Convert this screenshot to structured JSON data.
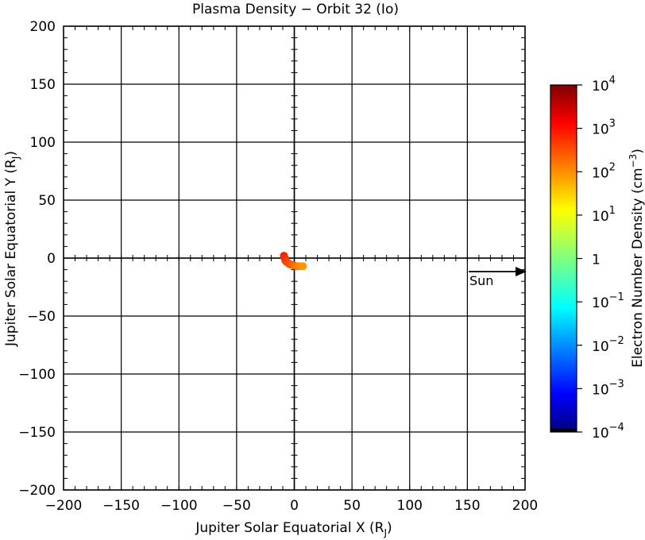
{
  "chart_data": {
    "type": "scatter",
    "title": "Plasma Density − Orbit 32 (Io)",
    "xlabel": "Jupiter Solar Equatorial X (R",
    "xlabel_sub": "J",
    "xlabel_end": ")",
    "ylabel": "Jupiter Solar Equatorial Y (R",
    "ylabel_sub": "J",
    "ylabel_end": ")",
    "xlim": [
      -200,
      200
    ],
    "ylim": [
      -200,
      200
    ],
    "x_ticks": [
      -200,
      -150,
      -100,
      -50,
      0,
      50,
      100,
      150,
      200
    ],
    "x_tick_labels": [
      "−200",
      "−150",
      "−100",
      "−50",
      "0",
      "50",
      "100",
      "150",
      "200"
    ],
    "y_ticks": [
      -200,
      -150,
      -100,
      -50,
      0,
      50,
      100,
      150,
      200
    ],
    "y_tick_labels": [
      "−200",
      "−150",
      "−100",
      "−50",
      "0",
      "50",
      "100",
      "150",
      "200"
    ],
    "grid": true,
    "sun_label": "Sun",
    "series": [
      {
        "points": [
          {
            "x": -9.0,
            "y": 2.0,
            "density": 800
          },
          {
            "x": -8.5,
            "y": 0.5,
            "density": 700
          },
          {
            "x": -8.0,
            "y": -1.0,
            "density": 600
          },
          {
            "x": -7.5,
            "y": -2.5,
            "density": 500
          },
          {
            "x": -6.5,
            "y": -3.5,
            "density": 400
          },
          {
            "x": -5.0,
            "y": -4.5,
            "density": 350
          },
          {
            "x": -3.5,
            "y": -5.5,
            "density": 300
          },
          {
            "x": -2.0,
            "y": -6.0,
            "density": 250
          },
          {
            "x": 0.0,
            "y": -6.5,
            "density": 200
          },
          {
            "x": 2.0,
            "y": -7.0,
            "density": 150
          },
          {
            "x": 4.0,
            "y": -7.0,
            "density": 120
          },
          {
            "x": 6.0,
            "y": -7.0,
            "density": 100
          },
          {
            "x": 7.5,
            "y": -7.0,
            "density": 90
          }
        ]
      }
    ],
    "colorbar": {
      "label": "Electron Number Density (cm",
      "label_sup": "−3",
      "label_end": ")",
      "scale": "log",
      "range": [
        0.0001,
        10000
      ],
      "ticks": [
        {
          "value": 10000,
          "base": "10",
          "exp": "4"
        },
        {
          "value": 1000,
          "base": "10",
          "exp": "3"
        },
        {
          "value": 100,
          "base": "10",
          "exp": "2"
        },
        {
          "value": 10,
          "base": "10",
          "exp": "1"
        },
        {
          "value": 1,
          "base": "1",
          "exp": ""
        },
        {
          "value": 0.1,
          "base": "10",
          "exp": "−1"
        },
        {
          "value": 0.01,
          "base": "10",
          "exp": "−2"
        },
        {
          "value": 0.001,
          "base": "10",
          "exp": "−3"
        },
        {
          "value": 0.0001,
          "base": "10",
          "exp": "−4"
        }
      ]
    }
  }
}
